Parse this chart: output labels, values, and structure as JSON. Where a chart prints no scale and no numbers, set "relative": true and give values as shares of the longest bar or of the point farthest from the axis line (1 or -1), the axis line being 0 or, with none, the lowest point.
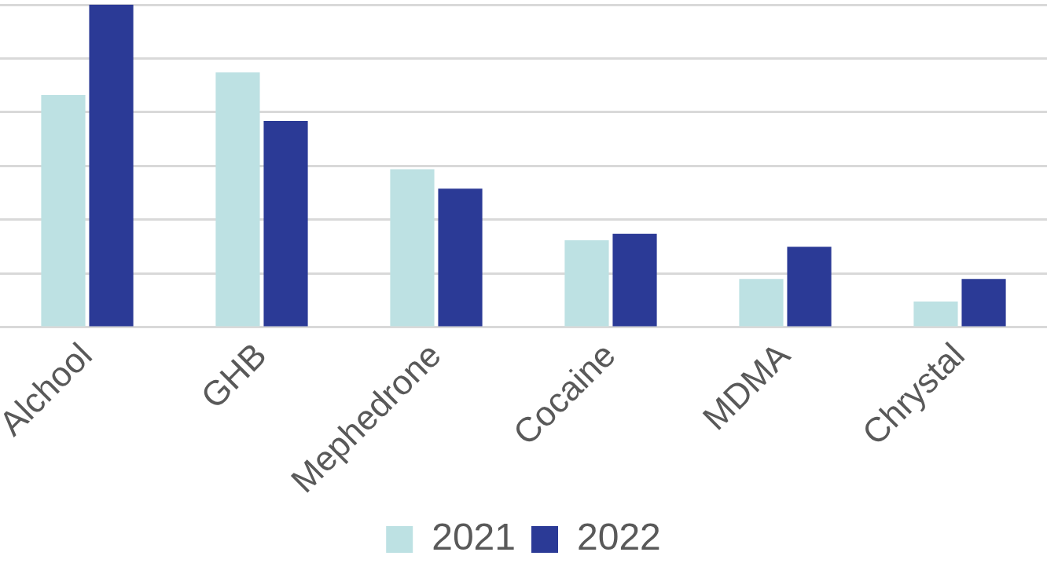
{
  "chart_data": {
    "type": "bar",
    "relative": true,
    "categories": [
      "Alchool",
      "GHB",
      "Mephedrone",
      "Cocaine",
      "MDMA",
      "Chrystal"
    ],
    "series": [
      {
        "name": "2021",
        "color": "#bde1e3",
        "values": [
          0.72,
          0.79,
          0.49,
          0.27,
          0.15,
          0.08
        ]
      },
      {
        "name": "2022",
        "color": "#2b3a96",
        "values": [
          1,
          0.64,
          0.43,
          0.29,
          0.25,
          0.15
        ]
      }
    ],
    "grid": "y",
    "legend": "bottom"
  }
}
